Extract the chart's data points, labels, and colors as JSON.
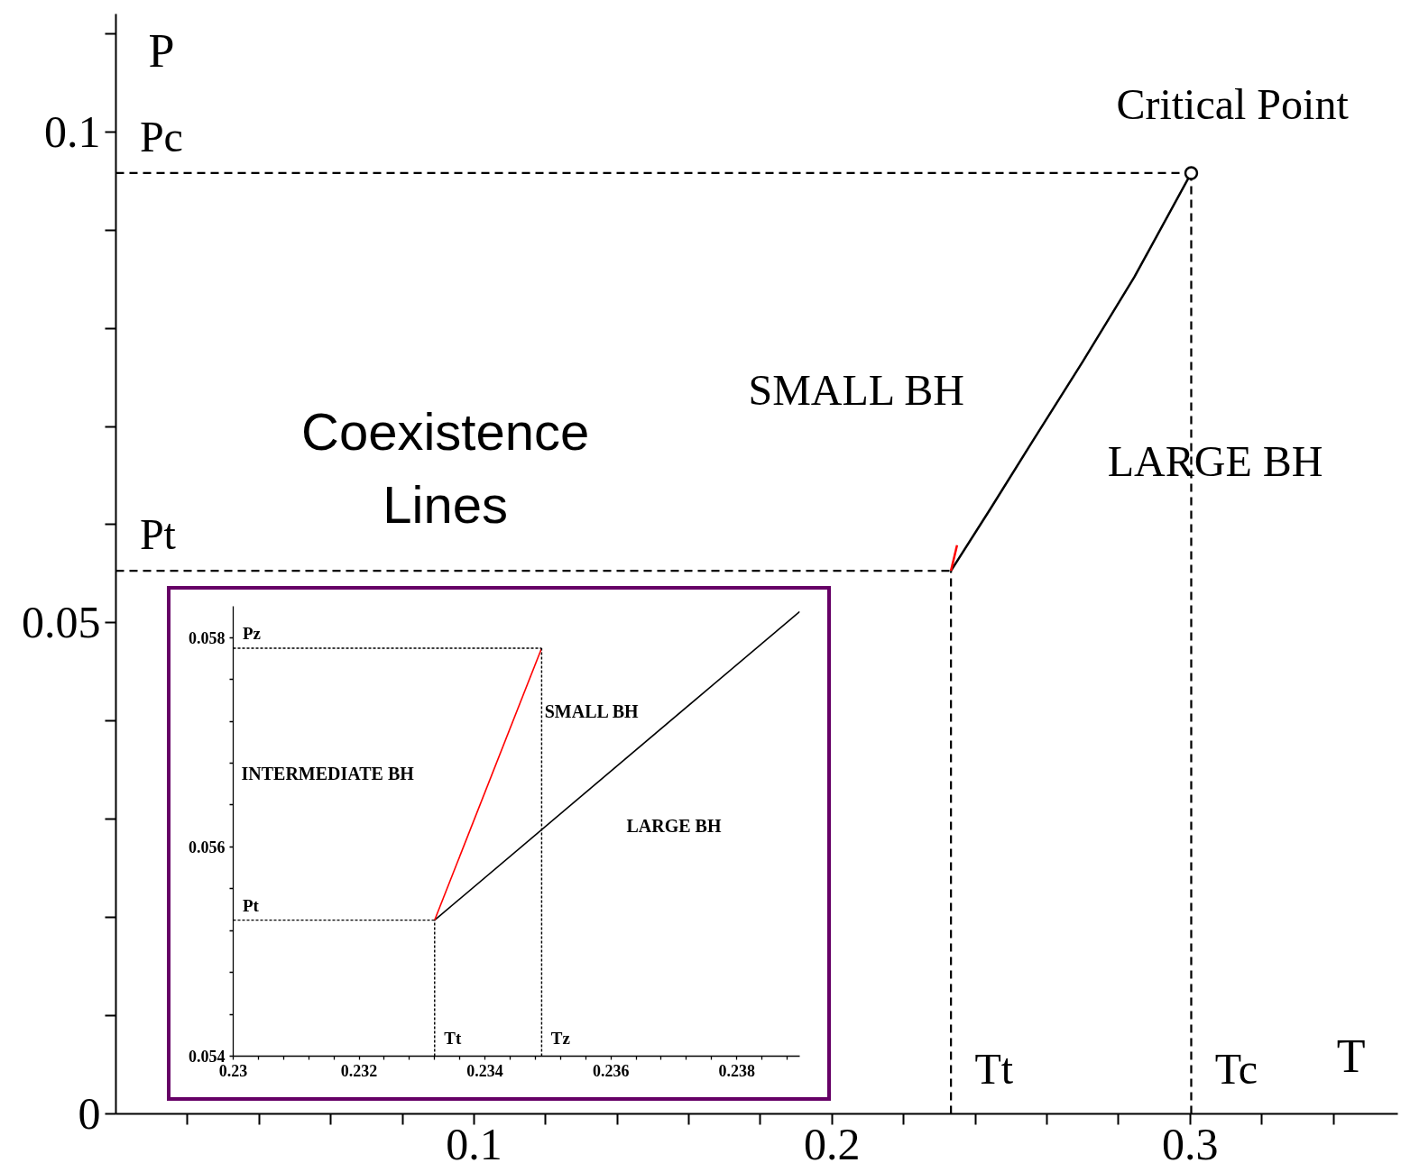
{
  "chart_data": [
    {
      "type": "line",
      "xlabel": "T",
      "ylabel": "P",
      "xlim": [
        0,
        0.358
      ],
      "ylim": [
        0,
        0.112
      ],
      "xticks": [
        {
          "value": 0.02,
          "label": null
        },
        {
          "value": 0.04,
          "label": null
        },
        {
          "value": 0.06,
          "label": null
        },
        {
          "value": 0.08,
          "label": null
        },
        0.1,
        {
          "value": 0.12,
          "label": null
        },
        {
          "value": 0.14,
          "label": null
        },
        {
          "value": 0.16,
          "label": null
        },
        {
          "value": 0.18,
          "label": null
        },
        0.2,
        {
          "value": 0.22,
          "label": null
        },
        {
          "value": 0.24,
          "label": null
        },
        {
          "value": 0.26,
          "label": null
        },
        {
          "value": 0.28,
          "label": null
        },
        0.3,
        {
          "value": 0.32,
          "label": null
        },
        {
          "value": 0.34,
          "label": null
        }
      ],
      "yticks": [
        0,
        {
          "value": 0.01,
          "label": null
        },
        {
          "value": 0.02,
          "label": null
        },
        {
          "value": 0.03,
          "label": null
        },
        {
          "value": 0.04,
          "label": null
        },
        0.05,
        {
          "value": 0.06,
          "label": null
        },
        {
          "value": 0.07,
          "label": null
        },
        {
          "value": 0.08,
          "label": null
        },
        {
          "value": 0.09,
          "label": null
        },
        0.1,
        {
          "value": 0.11,
          "label": null
        }
      ],
      "series": [
        {
          "color": "#000000",
          "x": [
            0.2332,
            0.2442,
            0.256,
            0.27,
            0.2844,
            0.3003
          ],
          "values": [
            0.0553,
            0.0616,
            0.0685,
            0.0766,
            0.0852,
            0.0958
          ]
        },
        {
          "color": "#ff0000",
          "x": [
            0.2332,
            0.2349
          ],
          "values": [
            0.0553,
            0.0579
          ]
        },
        {
          "color": "#000000",
          "line_style": "dashed",
          "x": [
            0,
            0.3003
          ],
          "values": [
            0.0958,
            0.0958
          ]
        },
        {
          "color": "#000000",
          "line_style": "dashed",
          "x": [
            0.3003,
            0.3003
          ],
          "values": [
            0,
            0.0958
          ]
        },
        {
          "color": "#000000",
          "line_style": "dashed",
          "x": [
            0,
            0.2332
          ],
          "values": [
            0.0553,
            0.0553
          ]
        },
        {
          "color": "#000000",
          "line_style": "dashed",
          "x": [
            0.2332,
            0.2332
          ],
          "values": [
            0,
            0.0553
          ]
        },
        {
          "type": "scatter",
          "marker": "circle",
          "color": "#000000",
          "x": [
            0.3003
          ],
          "values": [
            0.0958
          ]
        }
      ],
      "annotations": [
        {
          "text": "Critical Point",
          "x": 0.3003,
          "y": 0.0958
        },
        {
          "text": "Pc",
          "x": 0,
          "y": 0.0958
        },
        {
          "text": "Pt",
          "x": 0,
          "y": 0.0553
        },
        {
          "text": "Tt",
          "x": 0.2332,
          "y": 0
        },
        {
          "text": "Tc",
          "x": 0.3003,
          "y": 0
        },
        "SMALL BH",
        "LARGE BH",
        "Coexistence Lines"
      ],
      "grid": false
    },
    {
      "type": "line",
      "xlim": [
        0.23,
        0.239
      ],
      "ylim": [
        0.054,
        0.0583
      ],
      "xticks": [
        0.23,
        {
          "value": 0.2304,
          "label": null
        },
        {
          "value": 0.2308,
          "label": null
        },
        {
          "value": 0.2312,
          "label": null
        },
        {
          "value": 0.2316,
          "label": null
        },
        0.232,
        {
          "value": 0.2324,
          "label": null
        },
        {
          "value": 0.2328,
          "label": null
        },
        {
          "value": 0.2332,
          "label": null
        },
        {
          "value": 0.2336,
          "label": null
        },
        0.234,
        {
          "value": 0.2344,
          "label": null
        },
        {
          "value": 0.2348,
          "label": null
        },
        {
          "value": 0.2352,
          "label": null
        },
        {
          "value": 0.2356,
          "label": null
        },
        0.236,
        {
          "value": 0.2364,
          "label": null
        },
        {
          "value": 0.2368,
          "label": null
        },
        {
          "value": 0.2372,
          "label": null
        },
        {
          "value": 0.2376,
          "label": null
        },
        0.238,
        {
          "value": 0.2384,
          "label": null
        },
        {
          "value": 0.2388,
          "label": null
        }
      ],
      "yticks": [
        0.054,
        {
          "value": 0.0544,
          "label": null
        },
        {
          "value": 0.0548,
          "label": null
        },
        {
          "value": 0.0552,
          "label": null
        },
        {
          "value": 0.0556,
          "label": null
        },
        0.056,
        {
          "value": 0.0564,
          "label": null
        },
        {
          "value": 0.0568,
          "label": null
        },
        {
          "value": 0.0572,
          "label": null
        },
        {
          "value": 0.0576,
          "label": null
        },
        0.058
      ],
      "series": [
        {
          "color": "#000000",
          "x": [
            0.2332,
            0.239
          ],
          "values": [
            0.0553,
            0.05825
          ]
        },
        {
          "color": "#ff0000",
          "x": [
            0.2332,
            0.2349
          ],
          "values": [
            0.0553,
            0.0579
          ]
        },
        {
          "color": "#000000",
          "line_style": "dashed",
          "x": [
            0.23,
            0.2349
          ],
          "values": [
            0.0579,
            0.0579
          ]
        },
        {
          "color": "#000000",
          "line_style": "dashed",
          "x": [
            0.2349,
            0.2349
          ],
          "values": [
            0.054,
            0.0579
          ]
        },
        {
          "color": "#000000",
          "line_style": "dashed",
          "x": [
            0.23,
            0.2332
          ],
          "values": [
            0.0553,
            0.0553
          ]
        },
        {
          "color": "#000000",
          "line_style": "dashed",
          "x": [
            0.2332,
            0.2332
          ],
          "values": [
            0.054,
            0.0553
          ]
        }
      ],
      "annotations": [
        {
          "text": "Pz",
          "x": 0.23,
          "y": 0.0579
        },
        {
          "text": "Pt",
          "x": 0.23,
          "y": 0.0553
        },
        {
          "text": "Tt",
          "x": 0.2332,
          "y": 0.054
        },
        {
          "text": "Tz",
          "x": 0.2349,
          "y": 0.054
        },
        "INTERMEDIATE BH",
        "SMALL BH",
        "LARGE BH"
      ],
      "grid": false
    }
  ]
}
